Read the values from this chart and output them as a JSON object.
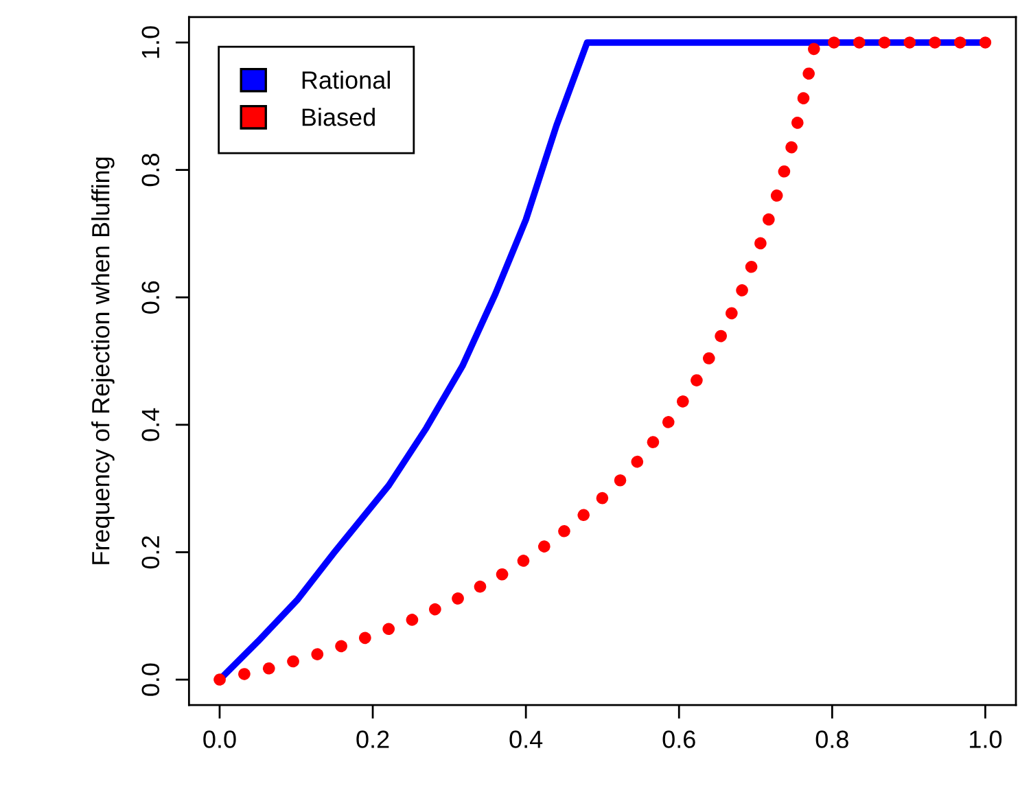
{
  "chart_data": {
    "type": "line",
    "ylabel": "Frequency of Rejection when Bluffing",
    "series": [
      {
        "name": "Rational",
        "color": "#0000ff",
        "line_style": "solid",
        "x": [
          0,
          0.05,
          0.102,
          0.15,
          0.221,
          0.27,
          0.317,
          0.36,
          0.4,
          0.44,
          0.48,
          1.0
        ],
        "values": [
          0,
          0.06,
          0.126,
          0.2,
          0.305,
          0.395,
          0.492,
          0.605,
          0.722,
          0.87,
          1.0,
          1.0
        ]
      },
      {
        "name": "Biased",
        "color": "#ff0000",
        "line_style": "dotted",
        "x": [
          0,
          0.066,
          0.131,
          0.196,
          0.258,
          0.321,
          0.379,
          0.436,
          0.488,
          0.536,
          0.579,
          0.618,
          0.651,
          0.68,
          0.705,
          0.727,
          0.747,
          0.763,
          0.778,
          1.0
        ],
        "values": [
          0,
          0.018,
          0.041,
          0.068,
          0.097,
          0.133,
          0.172,
          0.219,
          0.271,
          0.328,
          0.392,
          0.459,
          0.53,
          0.604,
          0.68,
          0.757,
          0.836,
          0.915,
          1.0,
          1.0
        ]
      }
    ],
    "xlim": [
      -0.04,
      1.04
    ],
    "ylim": [
      -0.04,
      1.04
    ],
    "xticks": [
      {
        "value": 0,
        "label": "0.0"
      },
      {
        "value": 0.2,
        "label": "0.2"
      },
      {
        "value": 0.4,
        "label": "0.4"
      },
      {
        "value": 0.6,
        "label": "0.6"
      },
      {
        "value": 0.8,
        "label": "0.8"
      },
      {
        "value": 1,
        "label": "1.0"
      }
    ],
    "yticks": [
      {
        "value": 0,
        "label": "0.0"
      },
      {
        "value": 0.2,
        "label": "0.2"
      },
      {
        "value": 0.4,
        "label": "0.4"
      },
      {
        "value": 0.6,
        "label": "0.6"
      },
      {
        "value": 0.8,
        "label": "0.8"
      },
      {
        "value": 1,
        "label": "1.0"
      }
    ],
    "legend": "top left",
    "grid": false
  }
}
